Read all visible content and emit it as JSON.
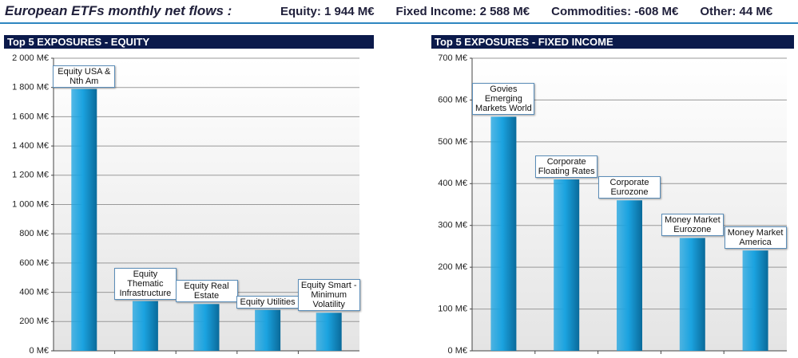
{
  "header": {
    "title": "European ETFs monthly net flows :",
    "items": [
      "Equity: 1 944 M€",
      "Fixed Income: 2 588 M€",
      "Commodities: -608 M€",
      "Other: 44 M€"
    ]
  },
  "chart_data": [
    {
      "type": "bar",
      "title": "Top 5 EXPOSURES - EQUITY",
      "color": "#1ba3e0",
      "grid": true,
      "categories": [
        "Equity USA & Nth Am",
        "Equity Thematic Infrastructure",
        "Equity Real Estate",
        "Equity Utilities",
        "Equity Smart - Minimum Volatility"
      ],
      "values": [
        1790,
        340,
        320,
        280,
        260
      ],
      "ylim": [
        0,
        2000
      ],
      "yticks": [
        {
          "value": 0,
          "label": "0 M€"
        },
        {
          "value": 200,
          "label": "200 M€"
        },
        {
          "value": 400,
          "label": "400 M€"
        },
        {
          "value": 600,
          "label": "600 M€"
        },
        {
          "value": 800,
          "label": "800 M€"
        },
        {
          "value": 1000,
          "label": "1 000 M€"
        },
        {
          "value": 1200,
          "label": "1 200 M€"
        },
        {
          "value": 1400,
          "label": "1 400 M€"
        },
        {
          "value": 1600,
          "label": "1 600 M€"
        },
        {
          "value": 1800,
          "label": "1 800 M€"
        },
        {
          "value": 2000,
          "label": "2 000 M€"
        }
      ]
    },
    {
      "type": "bar",
      "title": "Top 5 EXPOSURES - FIXED INCOME",
      "color": "#1ba3e0",
      "grid": true,
      "categories": [
        "Govies Emerging Markets World",
        "Corporate Floating Rates",
        "Corporate Eurozone",
        "Money Market Eurozone",
        "Money Market America"
      ],
      "values": [
        560,
        410,
        360,
        270,
        240
      ],
      "ylim": [
        0,
        700
      ],
      "yticks": [
        {
          "value": 0,
          "label": "0 M€"
        },
        {
          "value": 100,
          "label": "100 M€"
        },
        {
          "value": 200,
          "label": "200 M€"
        },
        {
          "value": 300,
          "label": "300 M€"
        },
        {
          "value": 400,
          "label": "400 M€"
        },
        {
          "value": 500,
          "label": "500 M€"
        },
        {
          "value": 600,
          "label": "600 M€"
        },
        {
          "value": 700,
          "label": "700 M€"
        }
      ]
    }
  ]
}
